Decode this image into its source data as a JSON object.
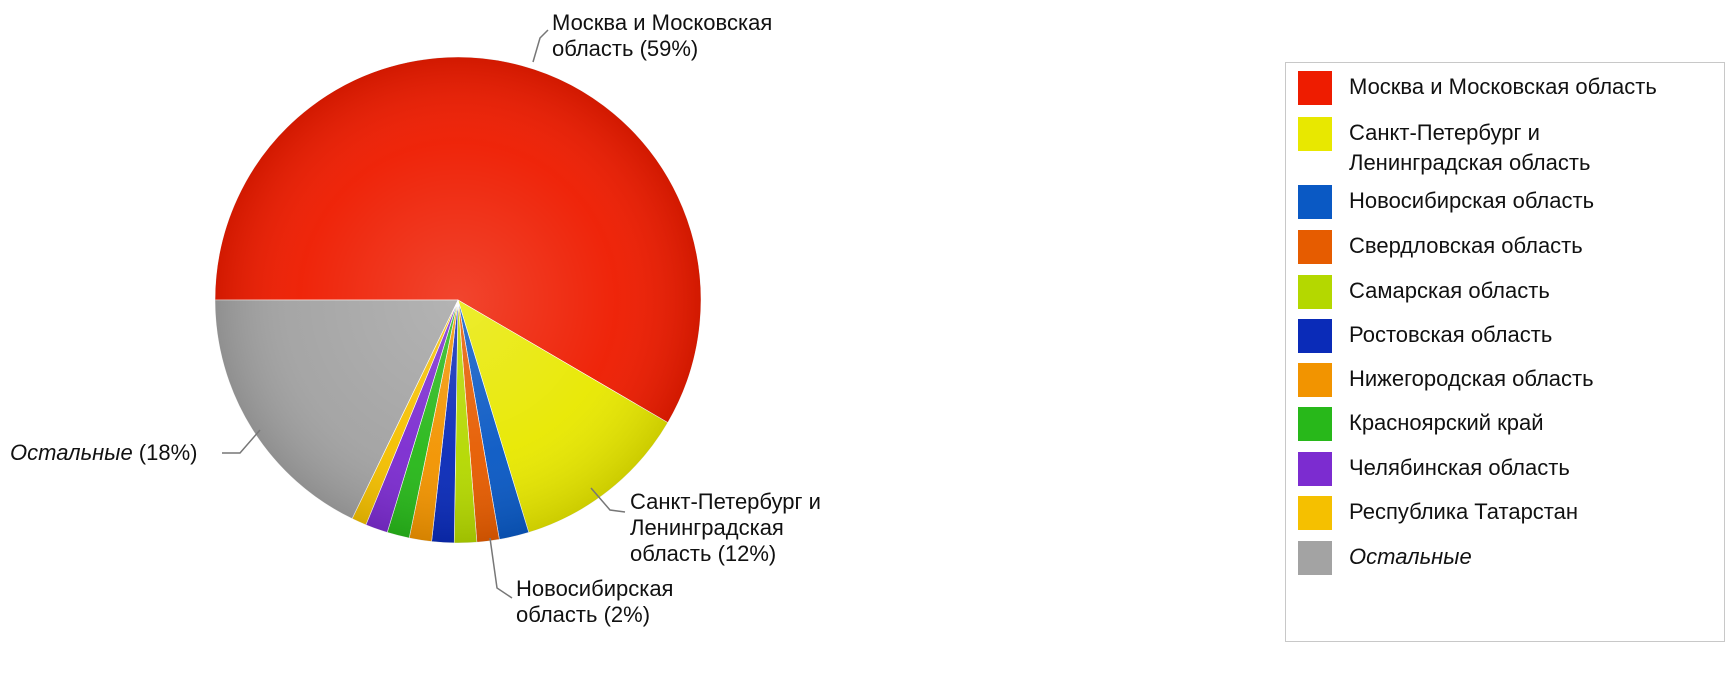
{
  "chart_data": {
    "type": "pie",
    "slices": [
      {
        "name": "Москва и Московская область",
        "value": 59,
        "color": "#ee1c00",
        "label_lines": [
          "Москва и Московская",
          "область (59%)"
        ],
        "italic": false
      },
      {
        "name": "Санкт-Петербург и Ленинградская область",
        "value": 12,
        "color": "#e8e800",
        "label_lines": [
          "Санкт-Петербург и",
          "Ленинградская",
          "область (12%)"
        ],
        "italic": false
      },
      {
        "name": "Новосибирская область",
        "value": 2,
        "color": "#0a59c4",
        "label_lines": [
          "Новосибирская",
          "область (2%)"
        ],
        "italic": false
      },
      {
        "name": "Свердловская область",
        "value": 1.5,
        "color": "#e65c00",
        "label_lines": [],
        "italic": false
      },
      {
        "name": "Самарская область",
        "value": 1.5,
        "color": "#b4d800",
        "label_lines": [],
        "italic": false
      },
      {
        "name": "Ростовская область",
        "value": 1.5,
        "color": "#0a2bb8",
        "label_lines": [],
        "italic": false
      },
      {
        "name": "Нижегородская область",
        "value": 1.5,
        "color": "#f29400",
        "label_lines": [],
        "italic": false
      },
      {
        "name": "Красноярский край",
        "value": 1.5,
        "color": "#28b81a",
        "label_lines": [],
        "italic": false
      },
      {
        "name": "Челябинская область",
        "value": 1.5,
        "color": "#7c2cd0",
        "label_lines": [],
        "italic": false
      },
      {
        "name": "Республика Татарстан",
        "value": 1,
        "color": "#f5c000",
        "label_lines": [],
        "italic": false
      },
      {
        "name": "Остальные",
        "value": 18,
        "color": "#a3a3a3",
        "label_lines": [
          "Остальные",
          " (18%)"
        ],
        "italic": true
      }
    ],
    "legend_position": "right",
    "legend": [
      {
        "label": "Москва и Московская область",
        "color": "#ee1c00",
        "italic": false
      },
      {
        "label": "Санкт-Петербург и Ленинградская область",
        "color": "#e8e800",
        "italic": false
      },
      {
        "label": "Новосибирская область",
        "color": "#0a59c4",
        "italic": false
      },
      {
        "label": "Свердловская область",
        "color": "#e65c00",
        "italic": false
      },
      {
        "label": "Самарская область",
        "color": "#b4d800",
        "italic": false
      },
      {
        "label": "Ростовская область",
        "color": "#0a2bb8",
        "italic": false
      },
      {
        "label": "Нижегородская область",
        "color": "#f29400",
        "italic": false
      },
      {
        "label": "Красноярский край",
        "color": "#28b81a",
        "italic": false
      },
      {
        "label": "Челябинская область",
        "color": "#7c2cd0",
        "italic": false
      },
      {
        "label": "Республика Татарстан",
        "color": "#f5c000",
        "italic": false
      },
      {
        "label": "Остальные",
        "color": "#a3a3a3",
        "italic": true
      }
    ]
  }
}
